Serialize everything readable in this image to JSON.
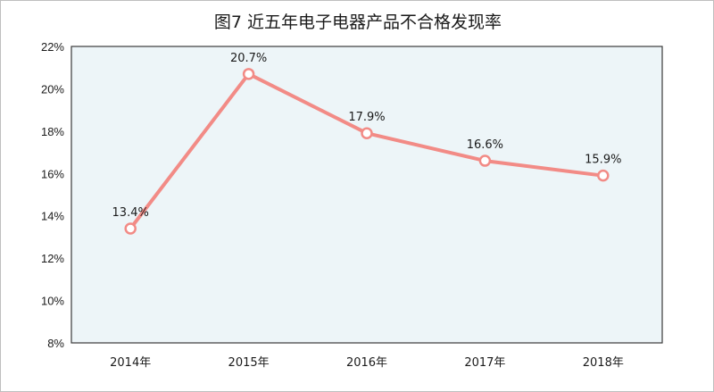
{
  "chart_data": {
    "type": "line",
    "title": "图7  近五年电子电器产品不合格发现率",
    "categories": [
      "2014年",
      "2015年",
      "2016年",
      "2017年",
      "2018年"
    ],
    "series": [
      {
        "values": [
          13.4,
          20.7,
          17.9,
          16.6,
          15.9
        ],
        "color": "#f28b86"
      }
    ],
    "data_labels": [
      "13.4%",
      "20.7%",
      "17.9%",
      "16.6%",
      "15.9%"
    ],
    "ylim": [
      8,
      22
    ],
    "yticks": [
      "8%",
      "10%",
      "12%",
      "14%",
      "16%",
      "18%",
      "20%",
      "22%"
    ],
    "grid": false,
    "plot_background": "#edf5f8",
    "xlabel": "",
    "ylabel": ""
  }
}
